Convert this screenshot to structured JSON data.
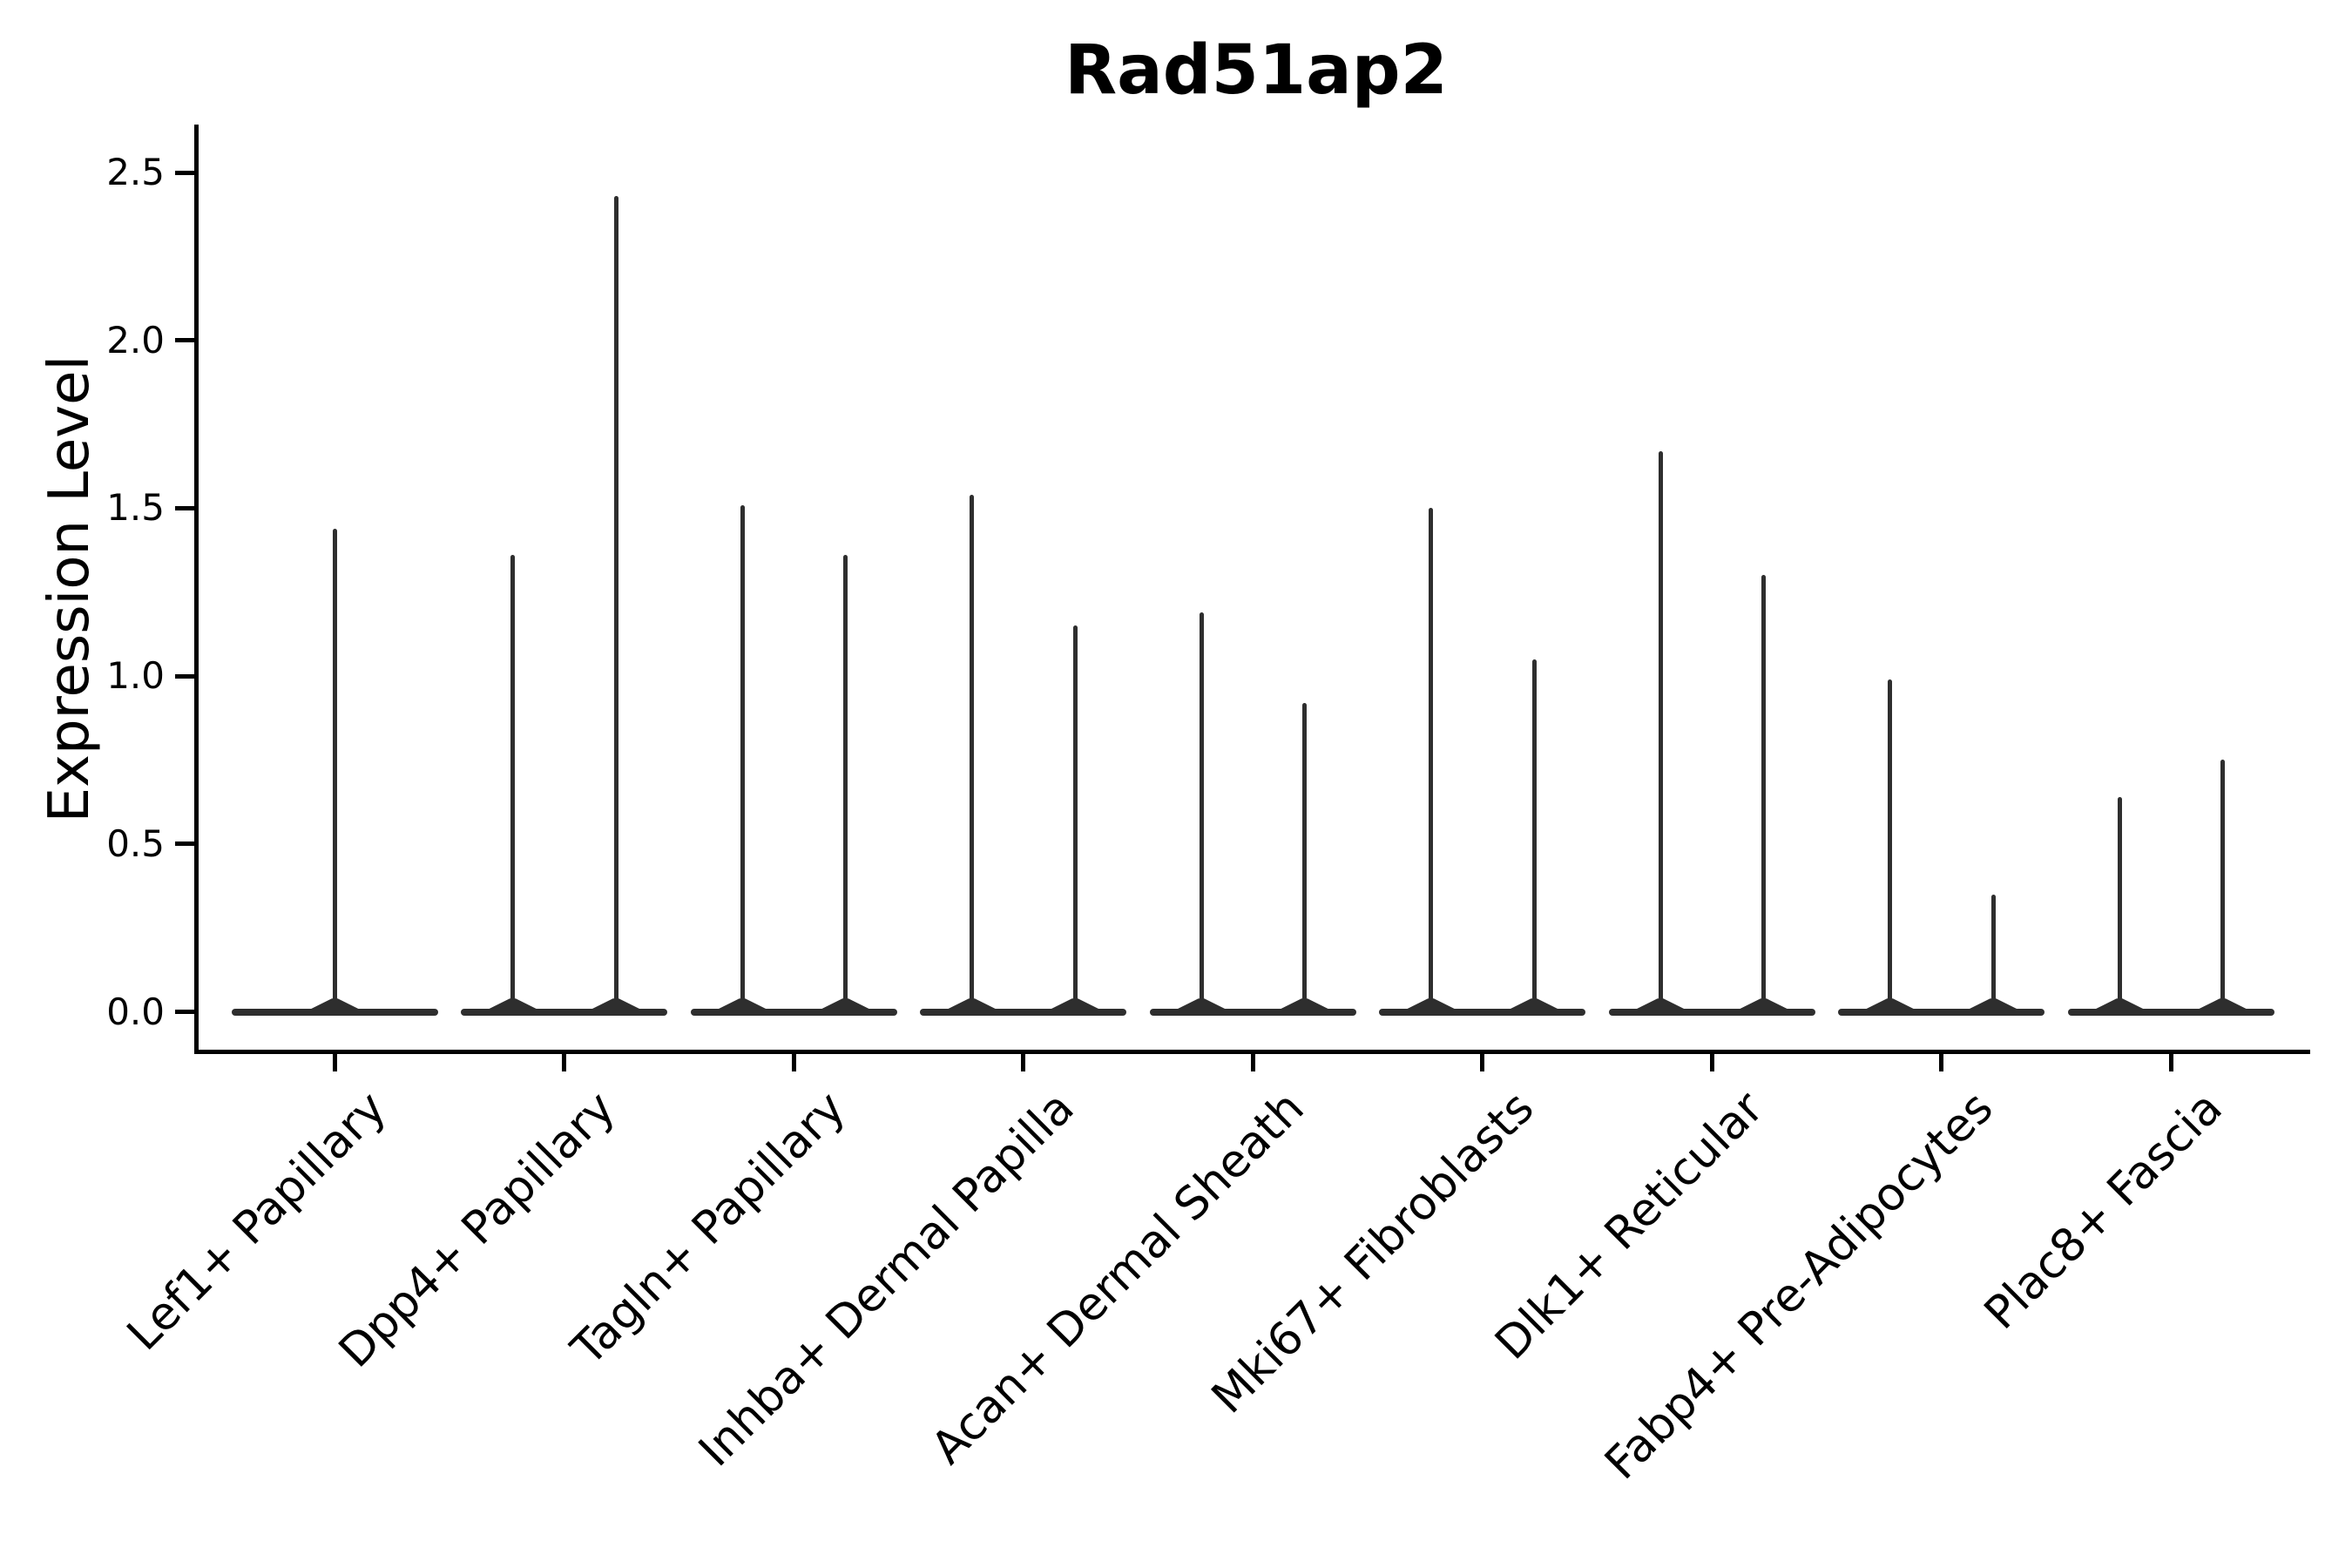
{
  "figure": {
    "title": "Rad51ap2",
    "background_color": "#ffffff",
    "text_color": "#000000",
    "violin_color": "#2e2e2e"
  },
  "chart_data": {
    "type": "violin",
    "title": "Rad51ap2",
    "xlabel": "",
    "ylabel": "Expression Level",
    "ylim": [
      -0.13,
      2.64
    ],
    "yticks": [
      0.0,
      0.5,
      1.0,
      1.5,
      2.0,
      2.5
    ],
    "ytick_labels": [
      "0.0",
      "0.5",
      "1.0",
      "1.5",
      "2.0",
      "2.5"
    ],
    "grid": false,
    "legend": "none",
    "x_tick_rotation_deg": 45,
    "description": "Needle-thin violin plot of single-cell gene expression; nearly all cells at 0 giving a flat base bar per category, with one or two thin spikes rising to the maximum expressed value.",
    "categories": [
      "Lef1+ Papillary",
      "Dpp4+ Papillary",
      "Tagln+ Papillary",
      "Inhba+ Dermal Papilla",
      "Acan+ Dermal Sheath",
      "Mki67+ Fibroblasts",
      "Dlk1+ Reticular",
      "Fabp4+ Pre-Adipocytes",
      "Plac8+ Fascia"
    ],
    "violins": [
      {
        "category": "Lef1+ Papillary",
        "baseline_value": 0.0,
        "spike_max_values": [
          1.44
        ]
      },
      {
        "category": "Dpp4+ Papillary",
        "baseline_value": 0.0,
        "spike_max_values": [
          1.36,
          2.43
        ]
      },
      {
        "category": "Tagln+ Papillary",
        "baseline_value": 0.0,
        "spike_max_values": [
          1.51,
          1.36
        ]
      },
      {
        "category": "Inhba+ Dermal Papilla",
        "baseline_value": 0.0,
        "spike_max_values": [
          1.54,
          1.15
        ]
      },
      {
        "category": "Acan+ Dermal Sheath",
        "baseline_value": 0.0,
        "spike_max_values": [
          1.19,
          0.92
        ]
      },
      {
        "category": "Mki67+ Fibroblasts",
        "baseline_value": 0.0,
        "spike_max_values": [
          1.5,
          1.05
        ]
      },
      {
        "category": "Dlk1+ Reticular",
        "baseline_value": 0.0,
        "spike_max_values": [
          1.67,
          1.3
        ]
      },
      {
        "category": "Fabp4+ Pre-Adipocytes",
        "baseline_value": 0.0,
        "spike_max_values": [
          0.99,
          0.35
        ]
      },
      {
        "category": "Plac8+ Fascia",
        "baseline_value": 0.0,
        "spike_max_values": [
          0.64,
          0.75
        ]
      }
    ]
  }
}
